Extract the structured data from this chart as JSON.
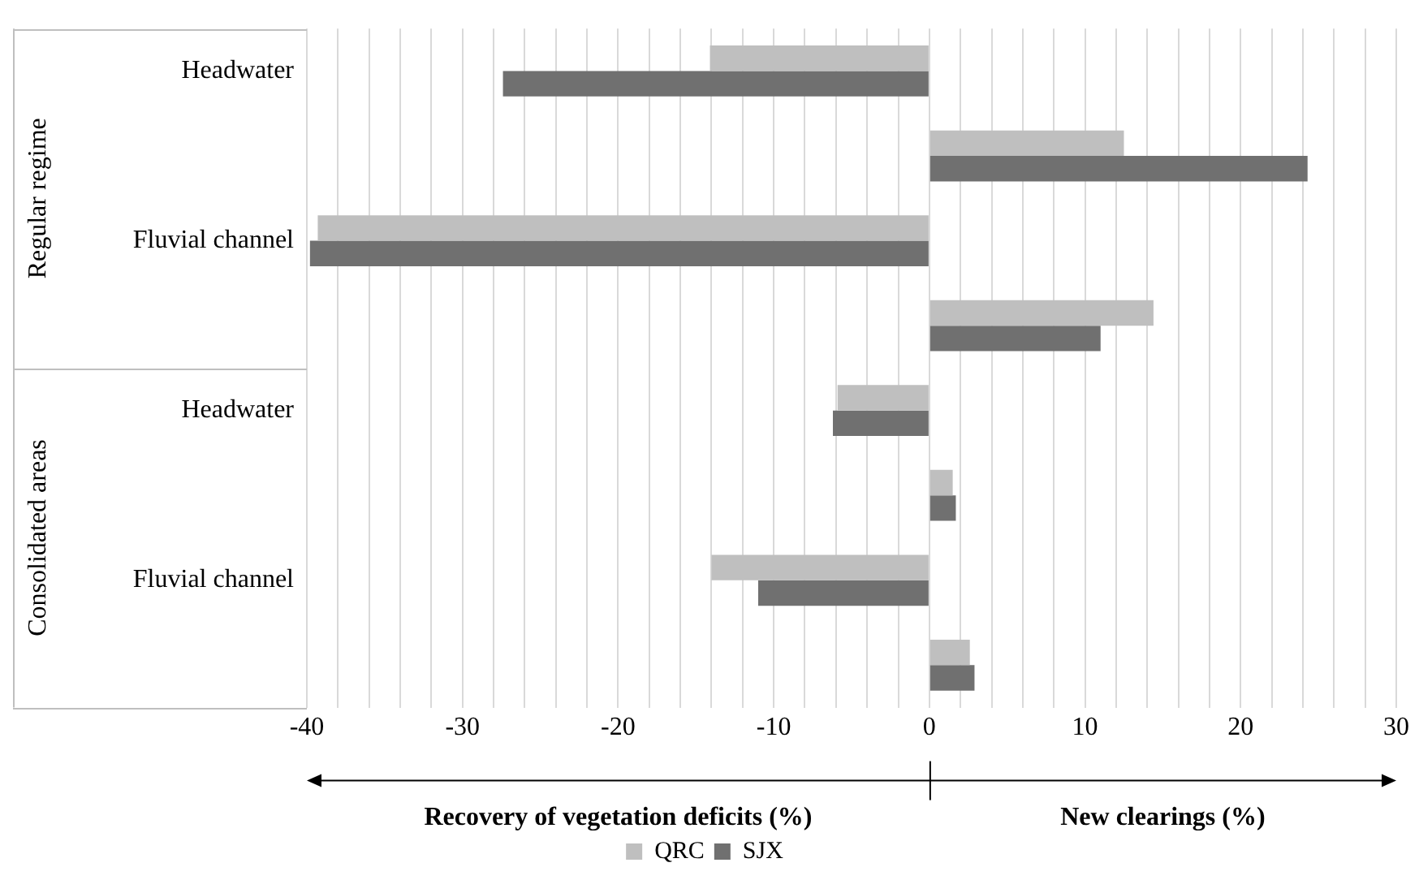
{
  "chart_data": {
    "type": "bar",
    "orientation": "horizontal",
    "categories": [
      "Headwater",
      null,
      "Fluvial channel",
      null,
      "Headwater",
      null,
      "Fluvial channel",
      null
    ],
    "series": [
      {
        "name": "QRC",
        "color": "#bfbfbf",
        "values": [
          -14.1,
          12.5,
          -39.3,
          14.4,
          -5.9,
          1.5,
          -14.0,
          2.6
        ]
      },
      {
        "name": "SJX",
        "color": "#707070",
        "values": [
          -27.4,
          24.3,
          -39.8,
          11.0,
          -6.2,
          1.7,
          -11.0,
          2.9
        ]
      }
    ],
    "xlim": [
      -40,
      30
    ],
    "xticks": [
      -40,
      {
        "value": -38,
        "label": null
      },
      {
        "value": -36,
        "label": null
      },
      {
        "value": -34,
        "label": null
      },
      {
        "value": -32,
        "label": null
      },
      -30,
      {
        "value": -28,
        "label": null
      },
      {
        "value": -26,
        "label": null
      },
      {
        "value": -24,
        "label": null
      },
      {
        "value": -22,
        "label": null
      },
      -20,
      {
        "value": -18,
        "label": null
      },
      {
        "value": -16,
        "label": null
      },
      {
        "value": -14,
        "label": null
      },
      {
        "value": -12,
        "label": null
      },
      -10,
      {
        "value": -8,
        "label": null
      },
      {
        "value": -6,
        "label": null
      },
      {
        "value": -4,
        "label": null
      },
      {
        "value": -2,
        "label": null
      },
      0,
      {
        "value": 2,
        "label": null
      },
      {
        "value": 4,
        "label": null
      },
      {
        "value": 6,
        "label": null
      },
      {
        "value": 8,
        "label": null
      },
      10,
      {
        "value": 12,
        "label": null
      },
      {
        "value": 14,
        "label": null
      },
      {
        "value": 16,
        "label": null
      },
      {
        "value": 18,
        "label": null
      },
      20,
      {
        "value": 22,
        "label": null
      },
      {
        "value": 24,
        "label": null
      },
      {
        "value": 26,
        "label": null
      },
      {
        "value": 28,
        "label": null
      },
      30
    ],
    "xlabel": "Recovery of vegetation deficits (%)",
    "annotations": [
      "Regular regime",
      "Consolidated areas",
      "New clearings (%)"
    ],
    "grid": "x",
    "legend": "bottom"
  }
}
